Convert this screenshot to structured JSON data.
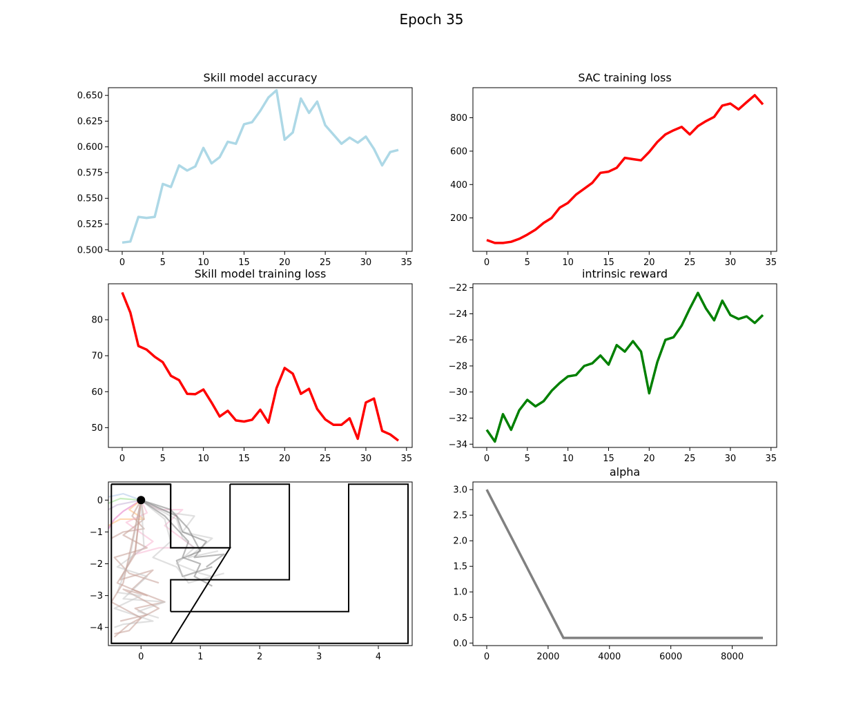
{
  "figure": {
    "title": "Epoch 35"
  },
  "chart_data": [
    {
      "type": "line",
      "title": "Skill model accuracy",
      "xlim": [
        -1.7,
        35.7
      ],
      "ylim": [
        0.4985,
        0.6575
      ],
      "xticks": [
        0,
        5,
        10,
        15,
        20,
        25,
        30,
        35
      ],
      "yticks": [
        0.5,
        0.525,
        0.55,
        0.575,
        0.6,
        0.625,
        0.65
      ],
      "ytick_labels": [
        "0.500",
        "0.525",
        "0.550",
        "0.575",
        "0.600",
        "0.625",
        "0.650"
      ],
      "color": "#add8e6",
      "series": [
        {
          "x": [
            0,
            1,
            2,
            3,
            4,
            5,
            6,
            7,
            8,
            9,
            10,
            11,
            12,
            13,
            14,
            15,
            16,
            17,
            18,
            19,
            20,
            21,
            22,
            23,
            24,
            25,
            26,
            27,
            28,
            29,
            30,
            31,
            32,
            33,
            34
          ],
          "y": [
            0.507,
            0.508,
            0.532,
            0.531,
            0.532,
            0.564,
            0.561,
            0.582,
            0.577,
            0.581,
            0.599,
            0.584,
            0.59,
            0.605,
            0.603,
            0.622,
            0.624,
            0.635,
            0.648,
            0.655,
            0.607,
            0.614,
            0.647,
            0.633,
            0.644,
            0.621,
            0.612,
            0.603,
            0.609,
            0.604,
            0.61,
            0.598,
            0.582,
            0.595,
            0.597
          ]
        }
      ]
    },
    {
      "type": "line",
      "title": "SAC training loss",
      "xlim": [
        -1.7,
        35.7
      ],
      "ylim": [
        0,
        980
      ],
      "xticks": [
        0,
        5,
        10,
        15,
        20,
        25,
        30,
        35
      ],
      "yticks": [
        200,
        400,
        600,
        800
      ],
      "color": "#ff0000",
      "series": [
        {
          "x": [
            0,
            1,
            2,
            3,
            4,
            5,
            6,
            7,
            8,
            9,
            10,
            11,
            12,
            13,
            14,
            15,
            16,
            17,
            18,
            19,
            20,
            21,
            22,
            23,
            24,
            25,
            26,
            27,
            28,
            29,
            30,
            31,
            32,
            33,
            34
          ],
          "y": [
            68,
            50,
            50,
            57,
            75,
            100,
            130,
            170,
            200,
            262,
            290,
            340,
            375,
            410,
            470,
            477,
            500,
            560,
            552,
            545,
            595,
            655,
            700,
            725,
            745,
            700,
            750,
            780,
            805,
            873,
            885,
            850,
            893,
            935,
            880
          ]
        }
      ]
    },
    {
      "type": "line",
      "title": "Skill model training loss",
      "xlim": [
        -1.7,
        35.7
      ],
      "ylim": [
        44.5,
        90
      ],
      "xticks": [
        0,
        5,
        10,
        15,
        20,
        25,
        30,
        35
      ],
      "yticks": [
        50,
        60,
        70,
        80
      ],
      "color": "#ff0000",
      "series": [
        {
          "x": [
            0,
            1,
            2,
            3,
            4,
            5,
            6,
            7,
            8,
            9,
            10,
            11,
            12,
            13,
            14,
            15,
            16,
            17,
            18,
            19,
            20,
            21,
            22,
            23,
            24,
            25,
            26,
            27,
            28,
            29,
            30,
            31,
            32,
            33,
            34
          ],
          "y": [
            87.6,
            82.0,
            72.7,
            71.7,
            69.7,
            68.2,
            64.4,
            63.2,
            59.4,
            59.3,
            60.6,
            57.0,
            53.1,
            54.7,
            52.0,
            51.7,
            52.2,
            55.0,
            51.4,
            61.0,
            66.6,
            65.0,
            59.4,
            60.8,
            55.2,
            52.3,
            50.8,
            50.8,
            52.6,
            46.9,
            57.0,
            58.1,
            49.1,
            48.1,
            46.4
          ]
        }
      ]
    },
    {
      "type": "line",
      "title": "intrinsic reward",
      "xlim": [
        -1.7,
        35.7
      ],
      "ylim": [
        -34.25,
        -21.7
      ],
      "xticks": [
        0,
        5,
        10,
        15,
        20,
        25,
        30,
        35
      ],
      "yticks": [
        -34,
        -32,
        -30,
        -28,
        -26,
        -24,
        -22
      ],
      "ytick_labels": [
        "−34",
        "−32",
        "−30",
        "−28",
        "−26",
        "−24",
        "−22"
      ],
      "color": "#008000",
      "series": [
        {
          "x": [
            0,
            1,
            2,
            3,
            4,
            5,
            6,
            7,
            8,
            9,
            10,
            11,
            12,
            13,
            14,
            15,
            16,
            17,
            18,
            19,
            20,
            21,
            22,
            23,
            24,
            25,
            26,
            27,
            28,
            29,
            30,
            31,
            32,
            33,
            34
          ],
          "y": [
            -32.9,
            -33.8,
            -31.7,
            -32.9,
            -31.4,
            -30.6,
            -31.1,
            -30.7,
            -29.9,
            -29.3,
            -28.8,
            -28.7,
            -28.0,
            -27.8,
            -27.2,
            -27.9,
            -26.4,
            -26.9,
            -26.1,
            -26.9,
            -30.1,
            -27.7,
            -26.0,
            -25.8,
            -24.9,
            -23.6,
            -22.4,
            -23.6,
            -24.5,
            -23.0,
            -24.1,
            -24.4,
            -24.2,
            -24.7,
            -24.1
          ]
        }
      ]
    },
    {
      "type": "line",
      "title": "",
      "subtype": "trajectories",
      "xlim": [
        -0.55,
        4.57
      ],
      "ylim": [
        -4.57,
        0.57
      ],
      "xticks": [
        0,
        1,
        2,
        3,
        4
      ],
      "yticks": [
        -4,
        -3,
        -2,
        -1,
        0
      ],
      "ytick_labels": [
        "−4",
        "−3",
        "−2",
        "−1",
        "0"
      ],
      "start_point": {
        "x": 0,
        "y": 0,
        "color": "#000000"
      },
      "walls": [
        {
          "x": [
            -0.5,
            -0.5,
            0.5,
            0.5,
            1.5,
            1.5,
            0.5,
            0.5,
            -0.5
          ],
          "y": [
            0.5,
            -4.5,
            -4.5,
            -4.5,
            -1.5,
            -1.5,
            -1.5,
            0.5,
            0.5
          ]
        },
        {
          "x": [
            0.5,
            0.5,
            1.5,
            1.5
          ],
          "y": [
            0.5,
            -1.5,
            -1.5,
            0.5
          ]
        },
        {
          "x": [
            1.5,
            1.5,
            2.5,
            2.5,
            0.5,
            0.5
          ],
          "y": [
            0.5,
            0.5,
            0.5,
            -2.5,
            -2.5,
            -3.5
          ]
        },
        {
          "x": [
            0.5,
            3.5,
            3.5,
            4.5,
            4.5,
            -0.5
          ],
          "y": [
            -3.5,
            -3.5,
            0.5,
            0.5,
            -4.5,
            -4.5
          ]
        },
        {
          "x": [
            -0.5,
            0.5
          ],
          "y": [
            0.5,
            0.5
          ]
        }
      ],
      "trajectories": [
        {
          "color": "#aec7e8",
          "x": [
            0,
            -0.3,
            -0.55
          ],
          "y": [
            0,
            0.2,
            0.1
          ]
        },
        {
          "color": "#98df8a",
          "x": [
            0,
            -0.35,
            -0.55
          ],
          "y": [
            0,
            0.05,
            -0.1
          ]
        },
        {
          "color": "#c5b0d5",
          "x": [
            0,
            -0.4,
            -0.55
          ],
          "y": [
            0,
            -0.15,
            -0.3
          ]
        },
        {
          "color": "#e377c2",
          "x": [
            0,
            -0.3,
            -0.45,
            -0.55
          ],
          "y": [
            0,
            -0.35,
            -0.6,
            -0.9
          ]
        },
        {
          "color": "#ffbb78",
          "x": [
            0,
            -0.2,
            0.05,
            -0.35,
            -0.55
          ],
          "y": [
            0,
            -0.3,
            -0.6,
            -0.6,
            -0.8
          ]
        },
        {
          "color": "#c49c94",
          "x": [
            0,
            -0.15,
            0.05,
            -0.3,
            -0.5
          ],
          "y": [
            0,
            -0.5,
            -0.9,
            -1.0,
            -1.2
          ]
        },
        {
          "color": "#f7b6d2",
          "x": [
            0,
            0.1,
            -0.25,
            0.2,
            -0.1,
            0.3,
            0.8
          ],
          "y": [
            0,
            -0.4,
            -0.7,
            -1.3,
            -1.7,
            -1.5,
            -1.5
          ]
        },
        {
          "color": "#c49c94",
          "x": [
            0,
            0.05,
            -0.3,
            0.1,
            -0.45,
            -0.2,
            0.3
          ],
          "y": [
            0,
            -0.6,
            -1.1,
            -1.5,
            -1.8,
            -2.3,
            -2.6
          ]
        },
        {
          "color": "#f7b6d2",
          "x": [
            0,
            0.3,
            0.7,
            0.4,
            0.9
          ],
          "y": [
            0,
            -0.3,
            -0.3,
            -0.8,
            -1.5
          ]
        },
        {
          "color": "#c7c7c7",
          "x": [
            0,
            0.5,
            0.9,
            0.7,
            1.2,
            0.8,
            1.3
          ],
          "y": [
            0,
            -0.4,
            -0.5,
            -1.0,
            -1.2,
            -1.8,
            -1.6
          ]
        },
        {
          "color": "#7f7f7f",
          "x": [
            0,
            0.6,
            0.7,
            1.1,
            0.9,
            1.4,
            1.1
          ],
          "y": [
            0,
            -0.5,
            -1.0,
            -1.3,
            -1.8,
            -1.7,
            -2.1
          ]
        },
        {
          "color": "#7f7f7f",
          "x": [
            0,
            0.5,
            0.8,
            1.0,
            0.6,
            0.7,
            1.2
          ],
          "y": [
            0,
            -0.3,
            -0.9,
            -1.6,
            -1.9,
            -2.4,
            -2.1
          ]
        },
        {
          "color": "#c7c7c7",
          "x": [
            0,
            0.6,
            0.7,
            0.9,
            0.6,
            1.0,
            1.2
          ],
          "y": [
            0,
            -0.6,
            -1.2,
            -1.5,
            -2.0,
            -2.3,
            -2.4
          ]
        },
        {
          "color": "#c7c7c7",
          "x": [
            0,
            0.4,
            0.5,
            0.2,
            0.6,
            0.8,
            1.4
          ],
          "y": [
            0,
            -0.6,
            -1.3,
            -1.8,
            -2.1,
            -2.6,
            -2.3
          ]
        },
        {
          "color": "#7f7f7f",
          "x": [
            0,
            0.4,
            0.8,
            0.7,
            1.0,
            0.9,
            1.2
          ],
          "y": [
            0,
            -0.5,
            -1.3,
            -1.8,
            -2.0,
            -2.4,
            -2.7
          ]
        },
        {
          "color": "#c49c94",
          "x": [
            0,
            -0.1,
            -0.35,
            0.2,
            -0.15,
            0.4,
            -0.1,
            0.1,
            -0.35
          ],
          "y": [
            0,
            -1.6,
            -2.5,
            -2.2,
            -2.8,
            -3.2,
            -3.4,
            -3.6,
            -3.8
          ]
        },
        {
          "color": "#c7c7c7",
          "x": [
            0,
            0.05,
            -0.4,
            0.1,
            -0.3,
            0.4,
            -0.05,
            0.3
          ],
          "y": [
            0,
            -1.5,
            -2.1,
            -2.4,
            -3.1,
            -3.2,
            -3.5,
            -3.7
          ]
        },
        {
          "color": "#c49c94",
          "x": [
            0,
            -0.1,
            -0.4,
            0.1,
            -0.3,
            0.3,
            -0.2,
            -0.45
          ],
          "y": [
            0,
            -1.7,
            -2.6,
            -3.0,
            -2.8,
            -3.4,
            -3.9,
            -4.3
          ]
        },
        {
          "color": "#c7c7c7",
          "x": [
            0,
            -0.2,
            -0.4,
            0.0,
            -0.45,
            0.2,
            -0.3,
            -0.45
          ],
          "y": [
            0,
            -1.9,
            -2.9,
            -3.0,
            -3.4,
            -3.8,
            -3.9,
            -4.0
          ]
        },
        {
          "color": "#c49c94",
          "x": [
            0,
            -0.3,
            -0.5,
            0.0,
            -0.2,
            -0.45
          ],
          "y": [
            0,
            -2.6,
            -3.2,
            -3.7,
            -4.1,
            -4.2
          ]
        }
      ]
    },
    {
      "type": "line",
      "title": "alpha",
      "xlim": [
        -450,
        9450
      ],
      "ylim": [
        -0.05,
        3.15
      ],
      "xticks": [
        0,
        2000,
        4000,
        6000,
        8000
      ],
      "yticks": [
        0.0,
        0.5,
        1.0,
        1.5,
        2.0,
        2.5,
        3.0
      ],
      "ytick_labels": [
        "0.0",
        "0.5",
        "1.0",
        "1.5",
        "2.0",
        "2.5",
        "3.0"
      ],
      "color": "#808080",
      "series": [
        {
          "x": [
            0,
            2500,
            9000
          ],
          "y": [
            3.0,
            0.1,
            0.1
          ]
        }
      ]
    }
  ]
}
